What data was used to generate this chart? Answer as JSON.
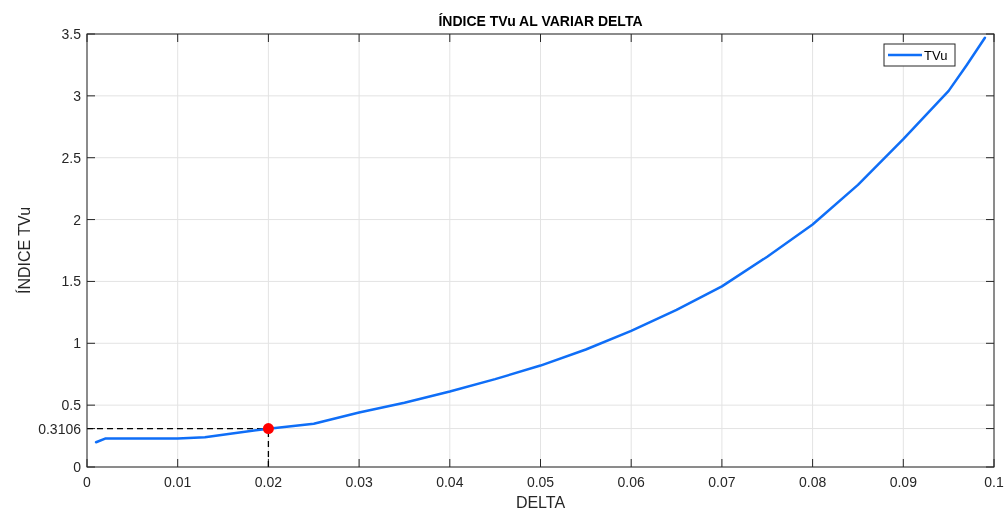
{
  "chart_data": {
    "type": "line",
    "title": "ÍNDICE TVu AL VARIAR DELTA",
    "xlabel": "DELTA",
    "ylabel": "ÍNDICE TVu",
    "xlim": [
      0,
      0.1
    ],
    "xticks": [
      0,
      0.01,
      0.02,
      0.03,
      0.04,
      0.05,
      0.06,
      0.07,
      0.08,
      0.09,
      0.1
    ],
    "ylim": [
      0,
      3.5
    ],
    "yticks": [
      0,
      0.3106,
      0.5,
      1,
      1.5,
      2,
      2.5,
      3,
      3.5
    ],
    "grid": true,
    "legend": "top right",
    "line_style": "solid",
    "series": [
      {
        "name": "TVu",
        "color": "#0f6ef7",
        "marker": "none",
        "x": [
          0.001,
          0.002,
          0.003,
          0.005,
          0.008,
          0.01,
          0.013,
          0.016,
          0.02,
          0.025,
          0.03,
          0.035,
          0.04,
          0.045,
          0.05,
          0.055,
          0.06,
          0.065,
          0.07,
          0.075,
          0.08,
          0.085,
          0.09,
          0.095,
          0.097,
          0.099
        ],
        "values": [
          0.2,
          0.23,
          0.23,
          0.23,
          0.23,
          0.23,
          0.24,
          0.27,
          0.31,
          0.35,
          0.44,
          0.52,
          0.61,
          0.71,
          0.82,
          0.95,
          1.1,
          1.27,
          1.46,
          1.7,
          1.96,
          2.28,
          2.65,
          3.04,
          3.25,
          3.47
        ]
      },
      {
        "type": "scatter",
        "color": "#ff0000",
        "marker": "circle",
        "x": [
          0.02
        ],
        "values": [
          0.3106
        ]
      }
    ],
    "ref_lines": [
      {
        "axis": "x",
        "value": 0.02,
        "color": "#000000",
        "line_style": "dashed"
      },
      {
        "axis": "y",
        "value": 0.3106,
        "color": "#000000",
        "line_style": "dashed"
      }
    ]
  }
}
